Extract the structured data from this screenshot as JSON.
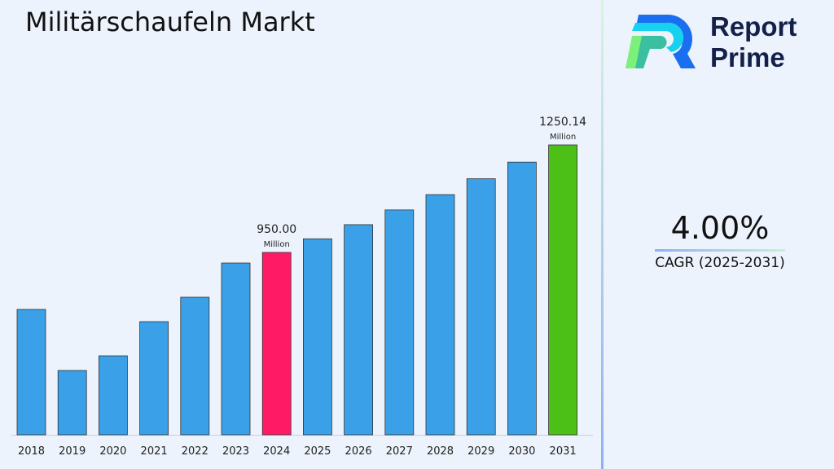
{
  "title": "Militärschaufeln Markt",
  "brand": {
    "line1": "Report",
    "line2": "Prime"
  },
  "cagr": {
    "value": "4.00%",
    "label": "CAGR (2025-2031)"
  },
  "colors": {
    "default": "#3aa0e8",
    "highlight_2024": "#ff1a66",
    "highlight_2031": "#4cc016"
  },
  "chart_data": {
    "type": "bar",
    "title": "Militärschaufeln Markt",
    "categories": [
      "2018",
      "2019",
      "2020",
      "2021",
      "2022",
      "2023",
      "2024",
      "2025",
      "2026",
      "2027",
      "2028",
      "2029",
      "2030",
      "2031"
    ],
    "values": [
      790.8,
      620.3,
      661.2,
      756.7,
      824.9,
      920.4,
      950.0,
      988.0,
      1027.5,
      1068.6,
      1111.4,
      1155.8,
      1202.0,
      1250.14
    ],
    "unit": "Million",
    "data_labels": [
      {
        "year": "2024",
        "value": "950.00",
        "unit": "Million"
      },
      {
        "year": "2031",
        "value": "1250.14",
        "unit": "Million"
      }
    ],
    "grid": false
  }
}
